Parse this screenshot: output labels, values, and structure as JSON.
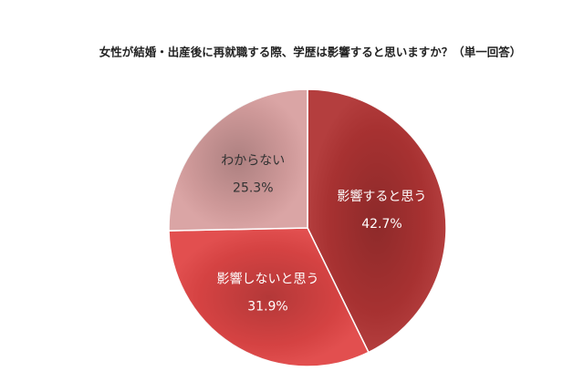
{
  "chart_data": {
    "type": "pie",
    "title": "女性が結婚・出産後に再就職する際、学歴は影響すると思いますか？（単一回答）",
    "categories": [
      "影響すると思う",
      "影響しないと思う",
      "わからない"
    ],
    "values": [
      42.7,
      31.9,
      25.3
    ],
    "value_labels": [
      "42.7%",
      "31.9%",
      "25.3%"
    ],
    "colors": [
      "#b03434",
      "#e04646",
      "#d8a0a0"
    ]
  }
}
